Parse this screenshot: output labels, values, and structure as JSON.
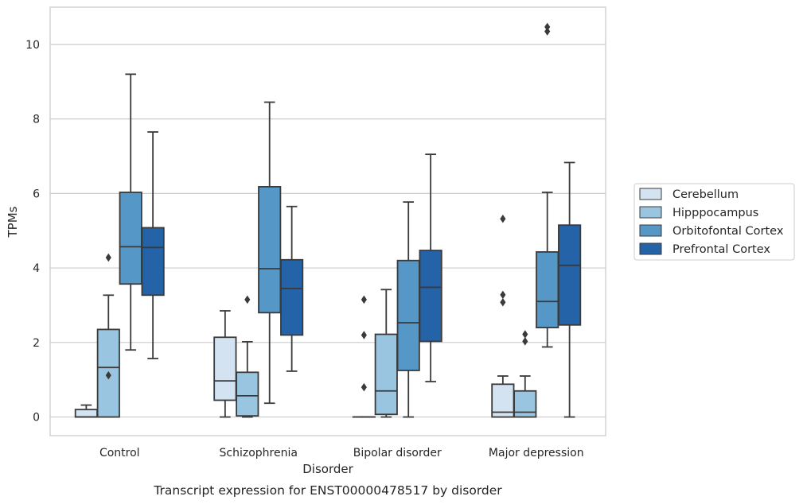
{
  "chart_data": {
    "type": "boxplot",
    "caption": "Transcript expression for ENST00000478517 by disorder",
    "xlabel": "Disorder",
    "ylabel": "TPMs",
    "ylim": [
      -0.5,
      11
    ],
    "yticks": [
      0,
      2,
      4,
      6,
      8,
      10
    ],
    "grid": "horizontal",
    "legend_position": "right",
    "categories": [
      "Control",
      "Schizophrenia",
      "Bipolar disorder",
      "Major depression"
    ],
    "series": [
      {
        "name": "Cerebellum",
        "color": "#d3e3f2",
        "boxes": [
          {
            "whislo": 0.0,
            "q1": 0.0,
            "med": 0.0,
            "q3": 0.2,
            "whishi": 0.32,
            "fliers": []
          },
          {
            "whislo": 0.0,
            "q1": 0.45,
            "med": 0.97,
            "q3": 2.14,
            "whishi": 2.85,
            "fliers": []
          },
          {
            "whislo": 0.0,
            "q1": 0.0,
            "med": 0.0,
            "q3": 0.0,
            "whishi": 0.0,
            "fliers": [
              0.8,
              2.2,
              3.15
            ]
          },
          {
            "whislo": 0.0,
            "q1": 0.0,
            "med": 0.13,
            "q3": 0.88,
            "whishi": 1.1,
            "fliers": [
              3.08,
              3.28,
              5.32
            ]
          }
        ]
      },
      {
        "name": "Hipppocampus",
        "color": "#9ac5e0",
        "boxes": [
          {
            "whislo": 0.0,
            "q1": 0.0,
            "med": 1.33,
            "q3": 2.35,
            "whishi": 3.27,
            "fliers": [
              1.12,
              4.28
            ]
          },
          {
            "whislo": 0.0,
            "q1": 0.03,
            "med": 0.57,
            "q3": 1.2,
            "whishi": 2.02,
            "fliers": [
              3.15
            ]
          },
          {
            "whislo": 0.0,
            "q1": 0.07,
            "med": 0.7,
            "q3": 2.22,
            "whishi": 3.42,
            "fliers": []
          },
          {
            "whislo": 0.0,
            "q1": 0.0,
            "med": 0.13,
            "q3": 0.7,
            "whishi": 1.1,
            "fliers": [
              2.03,
              2.22
            ]
          }
        ]
      },
      {
        "name": "Orbitofontal Cortex",
        "color": "#5597c6",
        "boxes": [
          {
            "whislo": 1.8,
            "q1": 3.57,
            "med": 4.57,
            "q3": 6.03,
            "whishi": 9.2,
            "fliers": []
          },
          {
            "whislo": 0.37,
            "q1": 2.8,
            "med": 3.98,
            "q3": 6.18,
            "whishi": 8.45,
            "fliers": []
          },
          {
            "whislo": 0.0,
            "q1": 1.25,
            "med": 2.53,
            "q3": 4.2,
            "whishi": 5.77,
            "fliers": []
          },
          {
            "whislo": 1.88,
            "q1": 2.4,
            "med": 3.1,
            "q3": 4.43,
            "whishi": 6.03,
            "fliers": [
              10.35,
              10.47
            ]
          }
        ]
      },
      {
        "name": "Prefrontal Cortex",
        "color": "#2463a8",
        "boxes": [
          {
            "whislo": 1.57,
            "q1": 3.27,
            "med": 4.55,
            "q3": 5.08,
            "whishi": 7.65,
            "fliers": []
          },
          {
            "whislo": 1.23,
            "q1": 2.2,
            "med": 3.45,
            "q3": 4.22,
            "whishi": 5.65,
            "fliers": []
          },
          {
            "whislo": 0.95,
            "q1": 2.03,
            "med": 3.48,
            "q3": 4.47,
            "whishi": 7.05,
            "fliers": []
          },
          {
            "whislo": 0.0,
            "q1": 2.47,
            "med": 4.07,
            "q3": 5.15,
            "whishi": 6.83,
            "fliers": []
          }
        ]
      }
    ]
  }
}
